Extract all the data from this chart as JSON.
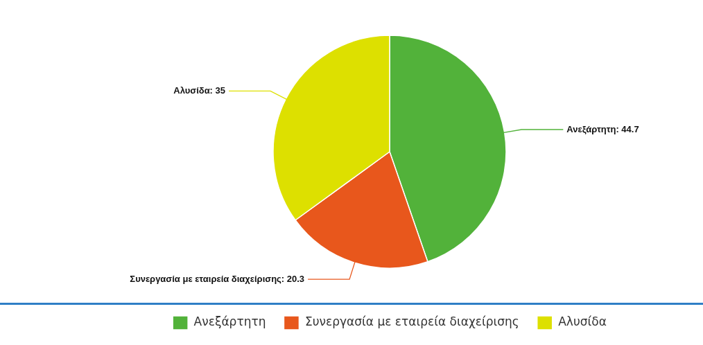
{
  "chart_data": {
    "type": "pie",
    "categories": [
      "Ανεξάρτητη",
      "Συνεργασία με εταιρεία διαχείρισης",
      "Αλυσίδα"
    ],
    "values": [
      44.7,
      20.3,
      35
    ],
    "value_labels": [
      "Ανεξάρτητη: 44.7",
      "Συνεργασία με εταιρεία διαχείρισης: 20.3",
      "Αλυσίδα: 35"
    ],
    "colors": [
      "#52b23a",
      "#e8571c",
      "#dde000"
    ],
    "legend": "bottom"
  }
}
